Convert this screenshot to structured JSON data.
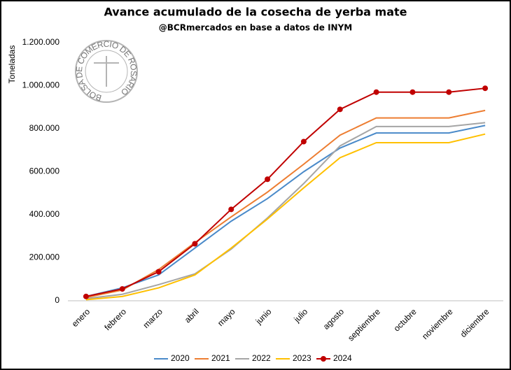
{
  "chart_data": {
    "type": "line",
    "title": "Avance acumulado de la cosecha de yerba mate",
    "subtitle": "@BCRmercados en base a datos de INYM",
    "y_label": "Toneladas",
    "logo_text": "BOLSA DE COMERCIO DE ROSARIO",
    "categories": [
      "enero",
      "febrero",
      "marzo",
      "abril",
      "mayo",
      "junio",
      "julio",
      "agosto",
      "septiembre",
      "octubre",
      "noviembre",
      "diciembre"
    ],
    "ylim": [
      0,
      1200000
    ],
    "yticks": [
      0,
      {
        "value": 200000,
        "label": "200.000"
      },
      {
        "value": 400000,
        "label": "400.000"
      },
      {
        "value": 600000,
        "label": "600.000"
      },
      {
        "value": 800000,
        "label": "800.000"
      },
      {
        "value": 1000000,
        "label": "1.000.000"
      },
      {
        "value": 1200000,
        "label": "1.200.000"
      }
    ],
    "grid": false,
    "legend": "bottom",
    "series": [
      {
        "name": "2020",
        "color": "#4a8ac9",
        "markers": false,
        "values": [
          20000,
          60000,
          120000,
          245000,
          370000,
          475000,
          600000,
          710000,
          780000,
          780000,
          780000,
          815000
        ]
      },
      {
        "name": "2021",
        "color": "#ed7d31",
        "markers": false,
        "values": [
          15000,
          50000,
          145000,
          270000,
          390000,
          505000,
          635000,
          770000,
          850000,
          850000,
          850000,
          885000
        ]
      },
      {
        "name": "2022",
        "color": "#a5a5a5",
        "markers": false,
        "values": [
          10000,
          30000,
          75000,
          125000,
          240000,
          385000,
          545000,
          720000,
          810000,
          810000,
          810000,
          828000
        ]
      },
      {
        "name": "2023",
        "color": "#ffc000",
        "markers": false,
        "values": [
          5000,
          20000,
          60000,
          120000,
          245000,
          380000,
          525000,
          665000,
          735000,
          735000,
          735000,
          775000
        ]
      },
      {
        "name": "2024",
        "color": "#c00000",
        "markers": true,
        "values": [
          20000,
          55000,
          135000,
          265000,
          425000,
          565000,
          740000,
          890000,
          970000,
          970000,
          970000,
          988000
        ]
      }
    ]
  }
}
